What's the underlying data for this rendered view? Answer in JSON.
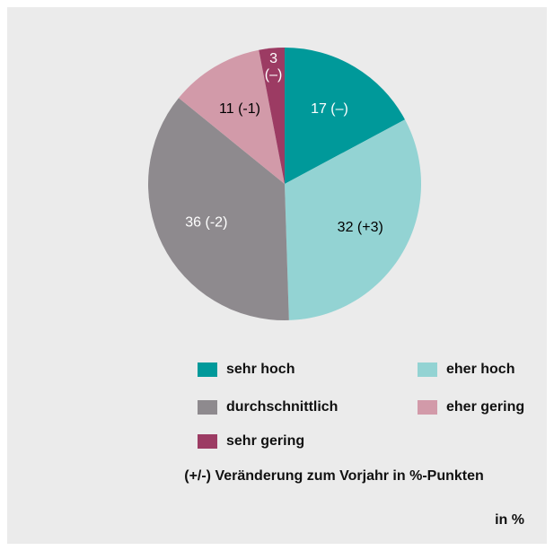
{
  "chart_data": {
    "type": "pie",
    "categories": [
      "sehr hoch",
      "eher hoch",
      "durchschnittlich",
      "eher gering",
      "sehr gering"
    ],
    "values": [
      17,
      32,
      36,
      11,
      3
    ],
    "value_labels": [
      "17 (–)",
      "32 (+3)",
      "36 (-2)",
      "11 (-1)",
      "3 (–)"
    ],
    "colors": [
      "#00999a",
      "#93d3d3",
      "#8e8a8e",
      "#d29aa9",
      "#9c3b63"
    ],
    "label_colors": [
      "#ffffff",
      "#000000",
      "#ffffff",
      "#000000",
      "#ffffff"
    ],
    "note": "(+/-) Veränderung zum Vorjahr in %-Punkten",
    "unit_label": "in %"
  }
}
